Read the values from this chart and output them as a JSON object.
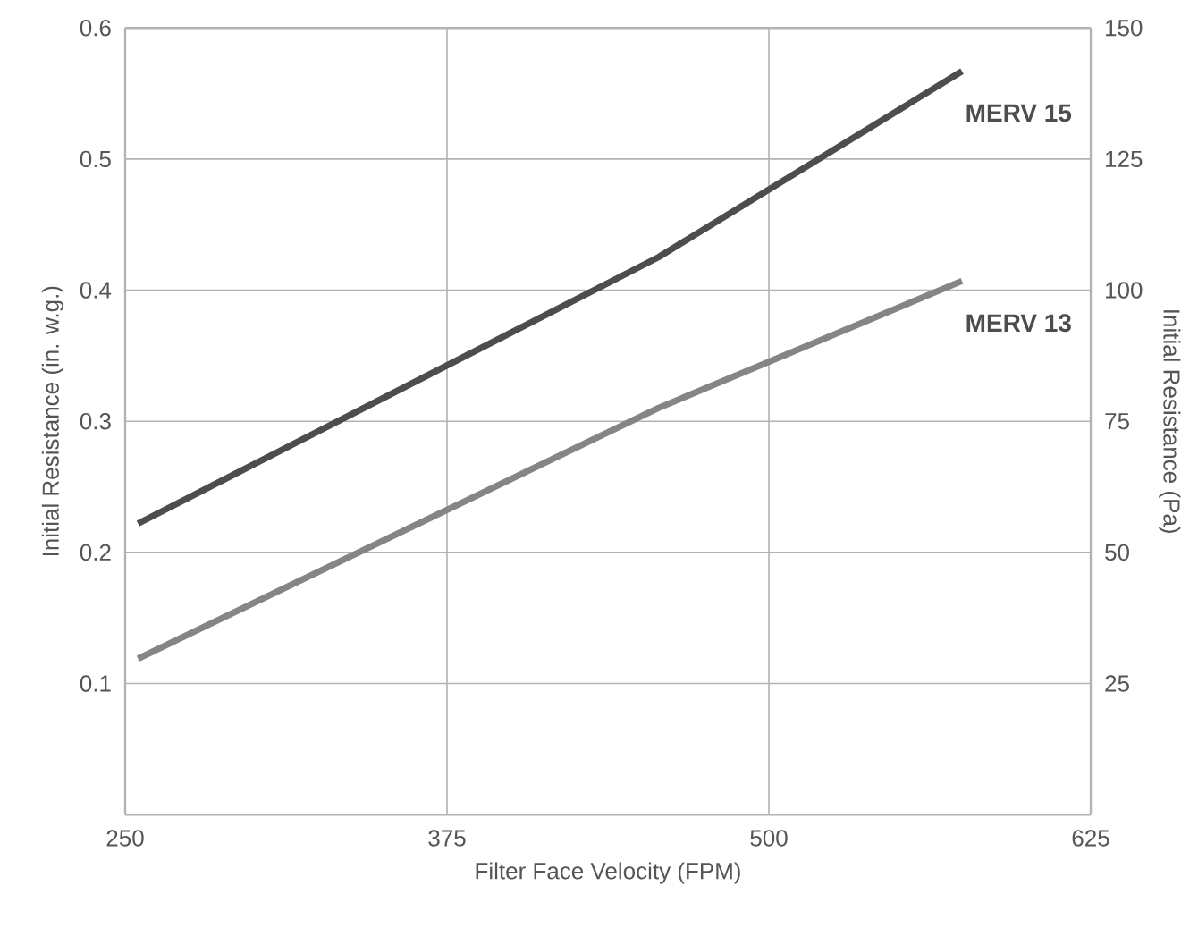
{
  "chart_data": {
    "type": "line",
    "xlabel": "Filter Face Velocity (FPM)",
    "ylabel": "Initial Resistance (in. w.g.)",
    "y2label": "Initial Resistance (Pa)",
    "xlim": [
      250,
      625
    ],
    "xticks": [
      250,
      375,
      500,
      625
    ],
    "ylim": [
      0,
      0.6
    ],
    "yticks": [
      0.1,
      0.2,
      0.3,
      0.4,
      0.5,
      0.6
    ],
    "y2lim": [
      0,
      150
    ],
    "y2ticks": [
      25,
      50,
      75,
      100,
      125,
      150
    ],
    "grid": true,
    "marker": "none",
    "line_style": "solid",
    "series": [
      {
        "name": "MERV 15",
        "color": "#4d4d4d",
        "x": [
          255,
          457,
          575
        ],
        "values": [
          0.222,
          0.425,
          0.567
        ]
      },
      {
        "name": "MERV 13",
        "color": "#858585",
        "x": [
          255,
          457,
          575
        ],
        "values": [
          0.119,
          0.31,
          0.407
        ]
      }
    ]
  }
}
